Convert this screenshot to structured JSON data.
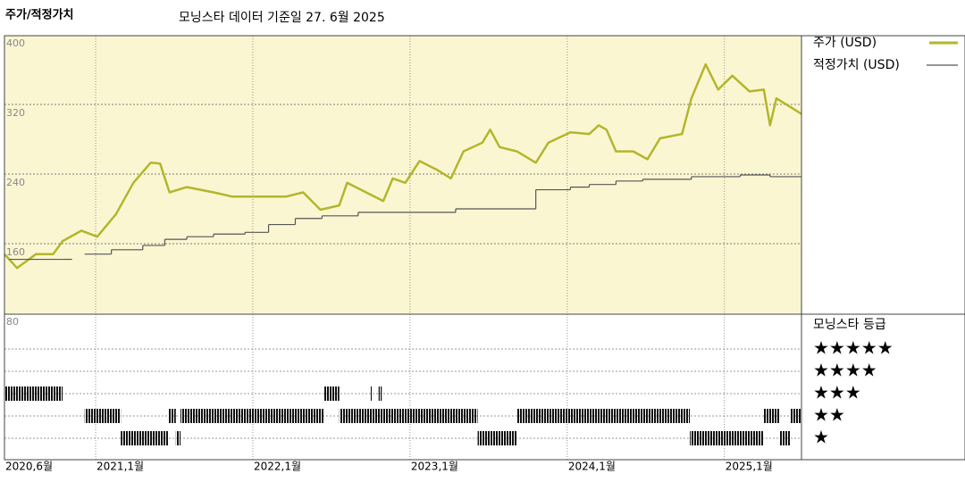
{
  "chart_data": {
    "type": "line",
    "title": "주가/적정가치",
    "subtitle": "모닝스타 데이터 기준일 27. 6월 2025",
    "xlim": [
      2020.42,
      2025.49
    ],
    "xticks": [
      {
        "value": 2020.42,
        "label": "2020,6월"
      },
      {
        "value": 2021,
        "label": "2021,1월"
      },
      {
        "value": 2022,
        "label": "2022,1월"
      },
      {
        "value": 2023,
        "label": "2023,1월"
      },
      {
        "value": 2024,
        "label": "2024,1월"
      },
      {
        "value": 2025,
        "label": "2025,1월"
      }
    ],
    "ylim": [
      80,
      400
    ],
    "yticks": [
      80,
      160,
      240,
      320,
      400
    ],
    "grid": true,
    "series": [
      {
        "name": "주가 (USD)",
        "color": "#b3b62c",
        "style": "line",
        "x": [
          2020.42,
          2020.5,
          2020.62,
          2020.73,
          2020.79,
          2020.91,
          2021.01,
          2021.13,
          2021.24,
          2021.35,
          2021.41,
          2021.47,
          2021.58,
          2021.75,
          2021.87,
          2022.04,
          2022.21,
          2022.32,
          2022.43,
          2022.55,
          2022.6,
          2022.72,
          2022.83,
          2022.89,
          2022.97,
          2023.06,
          2023.17,
          2023.26,
          2023.34,
          2023.46,
          2023.51,
          2023.57,
          2023.68,
          2023.8,
          2023.88,
          2024.02,
          2024.14,
          2024.2,
          2024.25,
          2024.31,
          2024.42,
          2024.51,
          2024.59,
          2024.73,
          2024.79,
          2024.88,
          2024.96,
          2025.05,
          2025.16,
          2025.25,
          2025.29,
          2025.33,
          2025.42,
          2025.49
        ],
        "values": [
          148,
          132,
          148,
          148,
          163,
          175,
          168,
          194,
          230,
          253,
          252,
          219,
          225,
          219,
          214,
          214,
          214,
          219,
          199,
          204,
          230,
          219,
          209,
          235,
          230,
          255,
          245,
          235,
          266,
          276,
          291,
          271,
          266,
          253,
          276,
          288,
          286,
          296,
          291,
          266,
          266,
          257,
          281,
          286,
          327,
          366,
          337,
          353,
          335,
          337,
          296,
          327,
          317,
          309
        ]
      },
      {
        "name": "적정가치 (USD)",
        "color": "#555555",
        "style": "steps-post",
        "x": [
          2020.45,
          2020.79,
          2020.85,
          2020.93,
          2021.1,
          2021.3,
          2021.44,
          2021.58,
          2021.75,
          2021.95,
          2022.1,
          2022.27,
          2022.44,
          2022.67,
          2023.29,
          2023.8,
          2024.02,
          2024.14,
          2024.31,
          2024.48,
          2024.79,
          2025.1,
          2025.29,
          2025.49
        ],
        "values": [
          142,
          142,
          null,
          148,
          153,
          158,
          165,
          168,
          171,
          173,
          182,
          189,
          192,
          196,
          200,
          222,
          225,
          228,
          232,
          234,
          237,
          239,
          237,
          237
        ]
      }
    ],
    "rating_title": "모닝스타 등급",
    "rating_levels": [
      "★★★★★",
      "★★★★",
      "★★★",
      "★★",
      "★"
    ],
    "ratings": [
      {
        "stars": 3,
        "start": 2020.42,
        "end": 2020.79
      },
      {
        "stars": 2,
        "start": 2020.93,
        "end": 2021.16
      },
      {
        "stars": 1,
        "start": 2021.16,
        "end": 2021.46
      },
      {
        "stars": 2,
        "start": 2021.46,
        "end": 2021.51
      },
      {
        "stars": 1,
        "start": 2021.51,
        "end": 2021.54
      },
      {
        "stars": 2,
        "start": 2021.54,
        "end": 2022.45
      },
      {
        "stars": 3,
        "start": 2022.45,
        "end": 2022.55
      },
      {
        "stars": 2,
        "start": 2022.55,
        "end": 2023.43
      },
      {
        "stars": 3,
        "start": 2022.75,
        "end": 2022.76
      },
      {
        "stars": 3,
        "start": 2022.8,
        "end": 2022.82
      },
      {
        "stars": 1,
        "start": 2023.43,
        "end": 2023.68
      },
      {
        "stars": 2,
        "start": 2023.68,
        "end": 2024.78
      },
      {
        "stars": 1,
        "start": 2024.78,
        "end": 2025.25
      },
      {
        "stars": 2,
        "start": 2025.25,
        "end": 2025.35
      },
      {
        "stars": 1,
        "start": 2025.35,
        "end": 2025.42
      },
      {
        "stars": 2,
        "start": 2025.42,
        "end": 2025.49
      }
    ]
  }
}
